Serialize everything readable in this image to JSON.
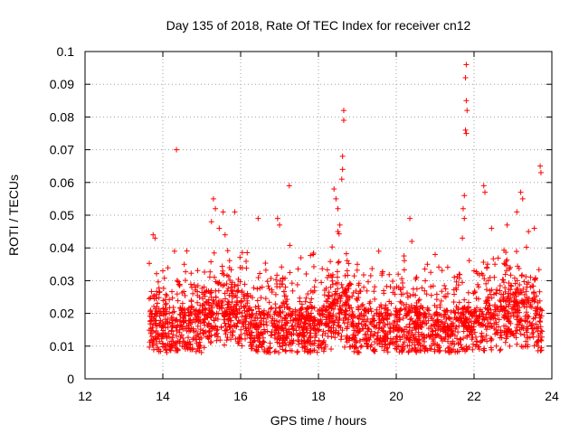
{
  "chart_data": {
    "type": "scatter",
    "title": "Day 135 of 2018, Rate Of TEC Index for receiver cn12",
    "xlabel": "GPS time / hours",
    "ylabel": "ROTI / TECUs",
    "xlim": [
      12,
      24
    ],
    "ylim": [
      0,
      0.1
    ],
    "xticks": [
      12,
      14,
      16,
      18,
      20,
      22,
      24
    ],
    "yticks": [
      0,
      0.01,
      0.02,
      0.03,
      0.04,
      0.05,
      0.06,
      0.07,
      0.08,
      0.09,
      0.1
    ],
    "xtick_labels": [
      "12",
      "14",
      "16",
      "18",
      "20",
      "22",
      "24"
    ],
    "ytick_labels": [
      "0",
      "0.01",
      "0.02",
      "0.03",
      "0.04",
      "0.05",
      "0.06",
      "0.07",
      "0.08",
      "0.09",
      "0.1"
    ],
    "grid": true,
    "marker": "plus",
    "color": "#ff0000",
    "series": [
      {
        "name": "ROTI",
        "x_range": [
          13.65,
          23.75
        ],
        "points": [
          [
            14.35,
            0.07
          ],
          [
            17.25,
            0.059
          ],
          [
            18.65,
            0.082
          ],
          [
            18.65,
            0.079
          ],
          [
            18.62,
            0.068
          ],
          [
            18.62,
            0.064
          ],
          [
            18.6,
            0.061
          ],
          [
            18.4,
            0.058
          ],
          [
            18.45,
            0.055
          ],
          [
            18.5,
            0.052
          ],
          [
            21.8,
            0.096
          ],
          [
            21.78,
            0.092
          ],
          [
            21.8,
            0.085
          ],
          [
            21.82,
            0.082
          ],
          [
            21.78,
            0.076
          ],
          [
            21.8,
            0.075
          ],
          [
            21.75,
            0.056
          ],
          [
            21.72,
            0.052
          ],
          [
            21.75,
            0.049
          ],
          [
            21.7,
            0.043
          ],
          [
            22.25,
            0.059
          ],
          [
            22.28,
            0.057
          ],
          [
            23.7,
            0.065
          ],
          [
            23.72,
            0.063
          ],
          [
            23.55,
            0.046
          ],
          [
            23.2,
            0.057
          ],
          [
            23.25,
            0.055
          ],
          [
            23.1,
            0.051
          ],
          [
            15.3,
            0.055
          ],
          [
            15.35,
            0.052
          ],
          [
            15.55,
            0.051
          ],
          [
            15.85,
            0.051
          ],
          [
            15.25,
            0.048
          ],
          [
            16.45,
            0.049
          ],
          [
            16.95,
            0.049
          ],
          [
            17.0,
            0.047
          ],
          [
            13.75,
            0.044
          ],
          [
            13.8,
            0.043
          ],
          [
            14.3,
            0.039
          ],
          [
            20.35,
            0.049
          ],
          [
            20.4,
            0.042
          ],
          [
            21.0,
            0.038
          ],
          [
            19.55,
            0.039
          ],
          [
            22.45,
            0.046
          ],
          [
            22.85,
            0.047
          ],
          [
            23.4,
            0.045
          ],
          [
            15.45,
            0.046
          ],
          [
            15.6,
            0.044
          ],
          [
            18.55,
            0.047
          ],
          [
            18.5,
            0.045
          ],
          [
            14.0,
            0.033
          ],
          [
            14.55,
            0.035
          ],
          [
            17.55,
            0.037
          ],
          [
            19.0,
            0.035
          ],
          [
            20.8,
            0.035
          ],
          [
            22.0,
            0.033
          ]
        ]
      }
    ]
  }
}
